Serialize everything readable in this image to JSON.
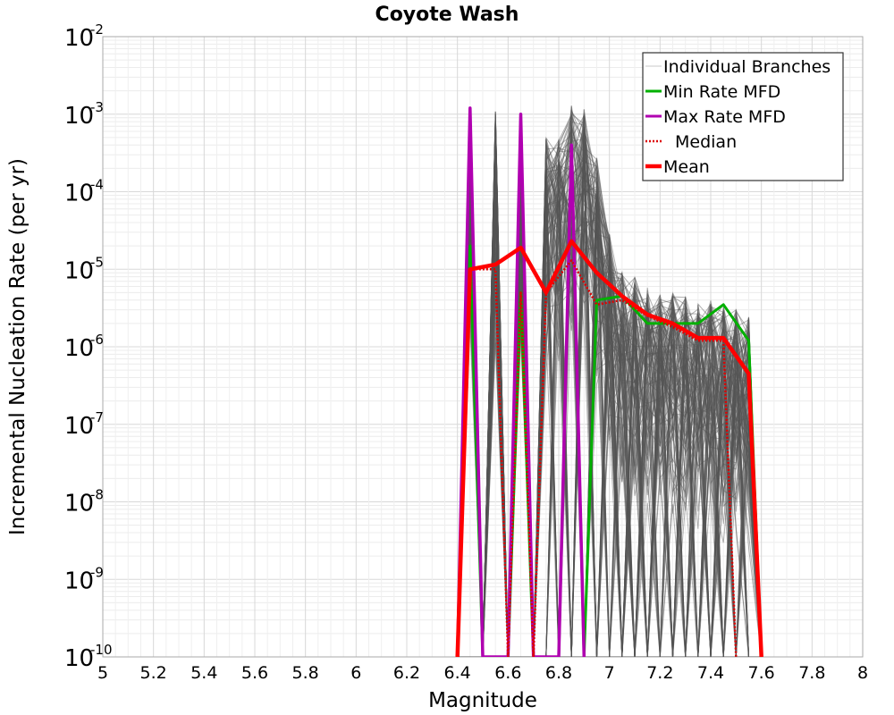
{
  "chart_data": {
    "type": "line",
    "title": "Coyote Wash",
    "xlabel": "Magnitude",
    "ylabel": "Incremental Nucleation Rate (per yr)",
    "x_scale": "linear",
    "y_scale": "log",
    "xlim": [
      5,
      8
    ],
    "ylim": [
      1e-10,
      0.01
    ],
    "grid": true,
    "legend_position": "top-right",
    "x_ticks": [
      "5",
      "5.2",
      "5.4",
      "5.6",
      "5.8",
      "6",
      "6.2",
      "6.4",
      "6.6",
      "6.8",
      "7",
      "7.2",
      "7.4",
      "7.6",
      "7.8",
      "8"
    ],
    "y_ticks": [
      {
        "base": "10",
        "exp": "-2"
      },
      {
        "base": "10",
        "exp": "-3"
      },
      {
        "base": "10",
        "exp": "-4"
      },
      {
        "base": "10",
        "exp": "-5"
      },
      {
        "base": "10",
        "exp": "-6"
      },
      {
        "base": "10",
        "exp": "-7"
      },
      {
        "base": "10",
        "exp": "-8"
      },
      {
        "base": "10",
        "exp": "-9"
      },
      {
        "base": "10",
        "exp": "-10"
      }
    ],
    "legend": [
      {
        "label": "Individual Branches",
        "color": "#c8c8c8",
        "style": "thin"
      },
      {
        "label": "Min Rate MFD",
        "color": "#00b000",
        "style": "solid"
      },
      {
        "label": "Max Rate MFD",
        "color": "#b000b0",
        "style": "solid"
      },
      {
        "label": "Median",
        "color": "#dd0000",
        "style": "dotted"
      },
      {
        "label": "Mean",
        "color": "#ff0000",
        "style": "thick"
      }
    ],
    "series": [
      {
        "name": "Individual Branches",
        "color": "#555555",
        "style": "thin",
        "x": [
          6.4,
          6.45,
          6.5,
          6.55,
          6.6,
          6.65,
          6.7,
          6.75,
          6.8,
          6.85,
          6.9,
          6.95,
          7.0,
          7.05,
          7.1,
          7.15,
          7.2,
          7.25,
          7.3,
          7.35,
          7.4,
          7.45,
          7.5,
          7.55,
          7.6
        ],
        "envelope_max": [
          1e-10,
          0.0012,
          1e-10,
          0.0011,
          1e-10,
          0.001,
          1e-10,
          0.0005,
          0.0005,
          0.0013,
          0.0012,
          0.0003,
          3e-05,
          1e-05,
          8e-06,
          6e-06,
          5e-06,
          5e-06,
          4.5e-06,
          4e-06,
          4e-06,
          3.5e-06,
          3e-06,
          2.5e-06,
          1e-10
        ],
        "envelope_min": [
          1e-10,
          1e-10,
          1e-10,
          1e-10,
          1e-10,
          1e-10,
          1e-10,
          1e-10,
          1e-10,
          1e-10,
          1e-10,
          1e-10,
          1e-10,
          1e-10,
          1e-10,
          1e-10,
          1e-10,
          1e-10,
          1e-10,
          1e-10,
          1e-10,
          1e-10,
          1e-10,
          1e-10,
          1e-10
        ]
      },
      {
        "name": "Min Rate MFD",
        "color": "#00b000",
        "x": [
          6.4,
          6.45,
          6.5,
          6.6,
          6.65,
          6.7,
          6.8,
          6.85,
          6.9,
          6.95,
          7.05,
          7.15,
          7.25,
          7.35,
          7.45,
          7.55,
          7.6
        ],
        "y": [
          1e-10,
          2e-05,
          1e-10,
          1e-10,
          5e-06,
          1e-10,
          1e-10,
          0.0003,
          1e-10,
          4e-06,
          4.5e-06,
          2e-06,
          2e-06,
          2e-06,
          3.5e-06,
          1.2e-06,
          1e-10
        ]
      },
      {
        "name": "Max Rate MFD",
        "color": "#b000b0",
        "x": [
          6.4,
          6.45,
          6.5,
          6.6,
          6.65,
          6.7,
          6.8,
          6.85,
          6.9
        ],
        "y": [
          1e-10,
          0.0012,
          1e-10,
          1e-10,
          0.001,
          1e-10,
          1e-10,
          0.0004,
          1e-10
        ]
      },
      {
        "name": "Median",
        "color": "#dd0000",
        "x": [
          6.4,
          6.45,
          6.5,
          6.55,
          6.6,
          6.65,
          6.7,
          6.75,
          6.85,
          6.95,
          7.05,
          7.15,
          7.25,
          7.35,
          7.45,
          7.5
        ],
        "y": [
          1e-10,
          1e-05,
          1e-05,
          1e-05,
          1e-10,
          5e-06,
          1e-10,
          5e-06,
          1.3e-05,
          3.5e-06,
          4e-06,
          2.5e-06,
          1.8e-06,
          1.2e-06,
          1.2e-06,
          1e-10
        ]
      },
      {
        "name": "Mean",
        "color": "#ff0000",
        "x": [
          6.4,
          6.45,
          6.55,
          6.65,
          6.75,
          6.85,
          6.95,
          7.05,
          7.15,
          7.25,
          7.35,
          7.45,
          7.55,
          7.6
        ],
        "y": [
          1e-10,
          1e-05,
          1.15e-05,
          1.9e-05,
          5e-06,
          2.3e-05,
          9e-06,
          4.5e-06,
          2.6e-06,
          2e-06,
          1.3e-06,
          1.3e-06,
          4.5e-07,
          1e-10
        ]
      }
    ]
  }
}
